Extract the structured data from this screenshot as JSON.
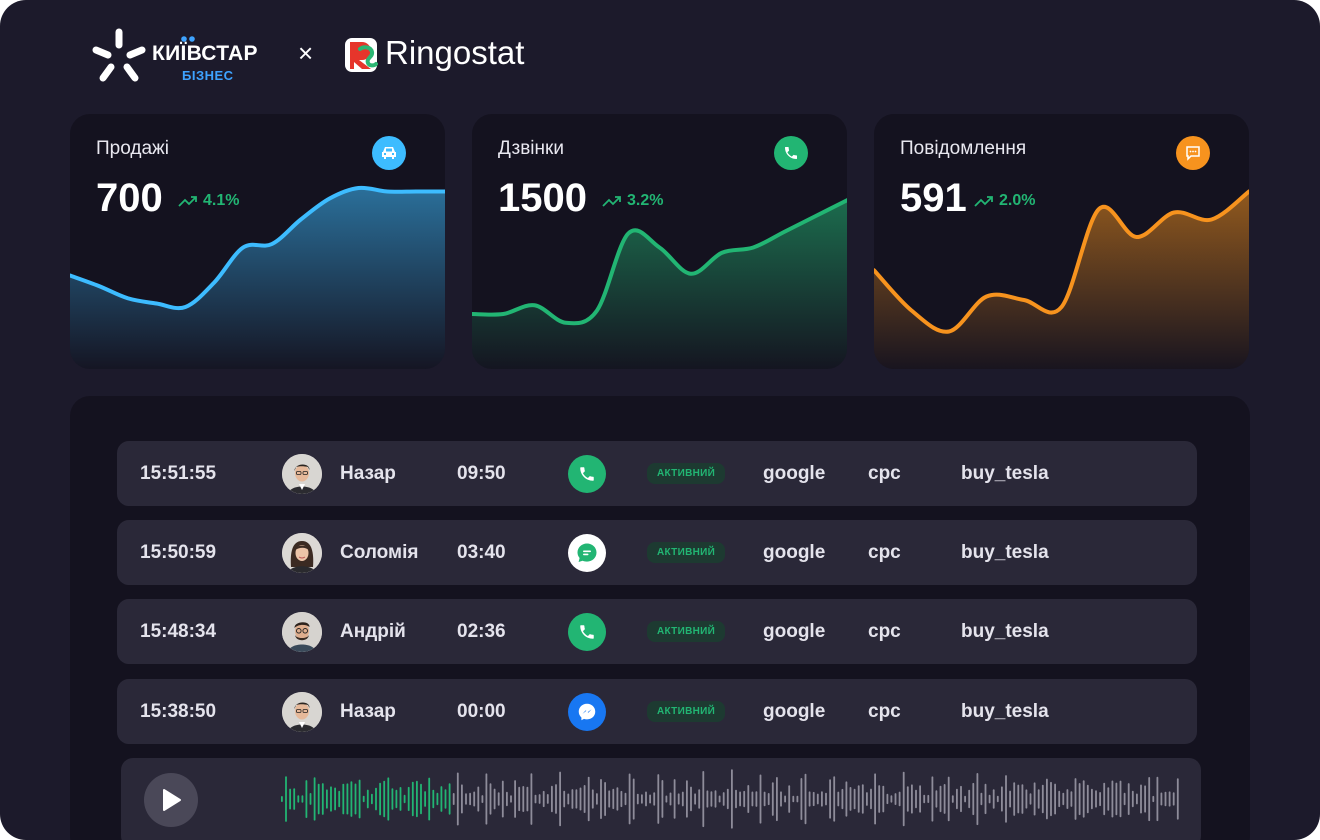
{
  "header": {
    "brand1_name": "КИЇВСТАР",
    "brand1_sub": "БІЗНЕС",
    "separator": "×",
    "brand2_name": "Ringostat"
  },
  "cards": [
    {
      "title": "Продажі",
      "value": "700",
      "trend": "4.1%",
      "icon": "car-icon",
      "color": "#3dbcff",
      "series": [
        42,
        36,
        29,
        26,
        24,
        38,
        58,
        60,
        74,
        86,
        92,
        90,
        90,
        90
      ]
    },
    {
      "title": "Дзвінки",
      "value": "1500",
      "trend": "3.2%",
      "icon": "phone-icon",
      "color": "#22b573",
      "series": [
        20,
        20,
        25,
        15,
        22,
        66,
        58,
        43,
        55,
        58,
        67,
        76,
        85
      ]
    },
    {
      "title": "Повідомлення",
      "value": "591",
      "trend": "2.0%",
      "icon": "chat-icon",
      "color": "#f7931e",
      "series": [
        45,
        22,
        10,
        30,
        28,
        24,
        80,
        64,
        78,
        74,
        90
      ]
    }
  ],
  "calls": [
    {
      "time": "15:51:55",
      "avatar": "avatar-nazar",
      "name": "Назар",
      "duration": "09:50",
      "channel": "phone-icon",
      "channel_color": "#22b573",
      "status": "АКТИВНИЙ",
      "source": "google",
      "medium": "cpc",
      "campaign": "buy_tesla"
    },
    {
      "time": "15:50:59",
      "avatar": "avatar-solomiya",
      "name": "Соломія",
      "duration": "03:40",
      "channel": "chat-bubble-icon",
      "channel_color": "#ffffff",
      "status": "АКТИВНИЙ",
      "source": "google",
      "medium": "cpc",
      "campaign": "buy_tesla"
    },
    {
      "time": "15:48:34",
      "avatar": "avatar-andriy",
      "name": "Андрій",
      "duration": "02:36",
      "channel": "phone-icon",
      "channel_color": "#22b573",
      "status": "АКТИВНИЙ",
      "source": "google",
      "medium": "cpc",
      "campaign": "buy_tesla"
    },
    {
      "time": "15:38:50",
      "avatar": "avatar-nazar",
      "name": "Назар",
      "duration": "00:00",
      "channel": "messenger-icon",
      "channel_color": "#1877f2",
      "status": "АКТИВНИЙ",
      "source": "google",
      "medium": "cpc",
      "campaign": "buy_tesla"
    }
  ],
  "player": {
    "play_icon": "play-icon",
    "played_color": "#22b573",
    "unplayed_color": "#8e8c9a"
  }
}
